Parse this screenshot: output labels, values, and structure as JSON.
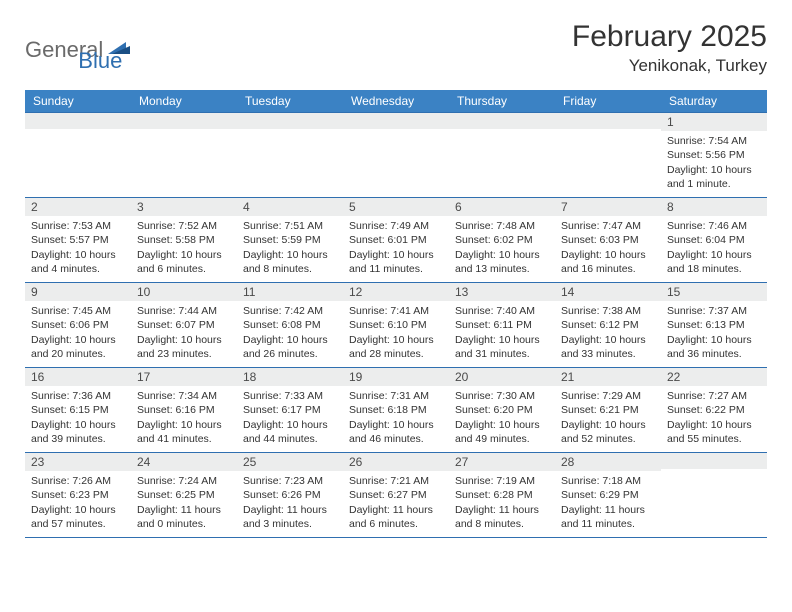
{
  "brand": {
    "part1": "General",
    "part2": "Blue"
  },
  "title": "February 2025",
  "location": "Yenikonak, Turkey",
  "colors": {
    "header_bg": "#3b82c4",
    "header_text": "#ffffff",
    "rule": "#2f6fb0",
    "daynum_bg": "#eceded",
    "body_text": "#333333",
    "logo_gray": "#6a6a6a",
    "logo_blue": "#2f6fb0"
  },
  "day_names": [
    "Sunday",
    "Monday",
    "Tuesday",
    "Wednesday",
    "Thursday",
    "Friday",
    "Saturday"
  ],
  "weeks": [
    [
      null,
      null,
      null,
      null,
      null,
      null,
      {
        "n": "1",
        "sunrise": "Sunrise: 7:54 AM",
        "sunset": "Sunset: 5:56 PM",
        "daylight": "Daylight: 10 hours and 1 minute."
      }
    ],
    [
      {
        "n": "2",
        "sunrise": "Sunrise: 7:53 AM",
        "sunset": "Sunset: 5:57 PM",
        "daylight": "Daylight: 10 hours and 4 minutes."
      },
      {
        "n": "3",
        "sunrise": "Sunrise: 7:52 AM",
        "sunset": "Sunset: 5:58 PM",
        "daylight": "Daylight: 10 hours and 6 minutes."
      },
      {
        "n": "4",
        "sunrise": "Sunrise: 7:51 AM",
        "sunset": "Sunset: 5:59 PM",
        "daylight": "Daylight: 10 hours and 8 minutes."
      },
      {
        "n": "5",
        "sunrise": "Sunrise: 7:49 AM",
        "sunset": "Sunset: 6:01 PM",
        "daylight": "Daylight: 10 hours and 11 minutes."
      },
      {
        "n": "6",
        "sunrise": "Sunrise: 7:48 AM",
        "sunset": "Sunset: 6:02 PM",
        "daylight": "Daylight: 10 hours and 13 minutes."
      },
      {
        "n": "7",
        "sunrise": "Sunrise: 7:47 AM",
        "sunset": "Sunset: 6:03 PM",
        "daylight": "Daylight: 10 hours and 16 minutes."
      },
      {
        "n": "8",
        "sunrise": "Sunrise: 7:46 AM",
        "sunset": "Sunset: 6:04 PM",
        "daylight": "Daylight: 10 hours and 18 minutes."
      }
    ],
    [
      {
        "n": "9",
        "sunrise": "Sunrise: 7:45 AM",
        "sunset": "Sunset: 6:06 PM",
        "daylight": "Daylight: 10 hours and 20 minutes."
      },
      {
        "n": "10",
        "sunrise": "Sunrise: 7:44 AM",
        "sunset": "Sunset: 6:07 PM",
        "daylight": "Daylight: 10 hours and 23 minutes."
      },
      {
        "n": "11",
        "sunrise": "Sunrise: 7:42 AM",
        "sunset": "Sunset: 6:08 PM",
        "daylight": "Daylight: 10 hours and 26 minutes."
      },
      {
        "n": "12",
        "sunrise": "Sunrise: 7:41 AM",
        "sunset": "Sunset: 6:10 PM",
        "daylight": "Daylight: 10 hours and 28 minutes."
      },
      {
        "n": "13",
        "sunrise": "Sunrise: 7:40 AM",
        "sunset": "Sunset: 6:11 PM",
        "daylight": "Daylight: 10 hours and 31 minutes."
      },
      {
        "n": "14",
        "sunrise": "Sunrise: 7:38 AM",
        "sunset": "Sunset: 6:12 PM",
        "daylight": "Daylight: 10 hours and 33 minutes."
      },
      {
        "n": "15",
        "sunrise": "Sunrise: 7:37 AM",
        "sunset": "Sunset: 6:13 PM",
        "daylight": "Daylight: 10 hours and 36 minutes."
      }
    ],
    [
      {
        "n": "16",
        "sunrise": "Sunrise: 7:36 AM",
        "sunset": "Sunset: 6:15 PM",
        "daylight": "Daylight: 10 hours and 39 minutes."
      },
      {
        "n": "17",
        "sunrise": "Sunrise: 7:34 AM",
        "sunset": "Sunset: 6:16 PM",
        "daylight": "Daylight: 10 hours and 41 minutes."
      },
      {
        "n": "18",
        "sunrise": "Sunrise: 7:33 AM",
        "sunset": "Sunset: 6:17 PM",
        "daylight": "Daylight: 10 hours and 44 minutes."
      },
      {
        "n": "19",
        "sunrise": "Sunrise: 7:31 AM",
        "sunset": "Sunset: 6:18 PM",
        "daylight": "Daylight: 10 hours and 46 minutes."
      },
      {
        "n": "20",
        "sunrise": "Sunrise: 7:30 AM",
        "sunset": "Sunset: 6:20 PM",
        "daylight": "Daylight: 10 hours and 49 minutes."
      },
      {
        "n": "21",
        "sunrise": "Sunrise: 7:29 AM",
        "sunset": "Sunset: 6:21 PM",
        "daylight": "Daylight: 10 hours and 52 minutes."
      },
      {
        "n": "22",
        "sunrise": "Sunrise: 7:27 AM",
        "sunset": "Sunset: 6:22 PM",
        "daylight": "Daylight: 10 hours and 55 minutes."
      }
    ],
    [
      {
        "n": "23",
        "sunrise": "Sunrise: 7:26 AM",
        "sunset": "Sunset: 6:23 PM",
        "daylight": "Daylight: 10 hours and 57 minutes."
      },
      {
        "n": "24",
        "sunrise": "Sunrise: 7:24 AM",
        "sunset": "Sunset: 6:25 PM",
        "daylight": "Daylight: 11 hours and 0 minutes."
      },
      {
        "n": "25",
        "sunrise": "Sunrise: 7:23 AM",
        "sunset": "Sunset: 6:26 PM",
        "daylight": "Daylight: 11 hours and 3 minutes."
      },
      {
        "n": "26",
        "sunrise": "Sunrise: 7:21 AM",
        "sunset": "Sunset: 6:27 PM",
        "daylight": "Daylight: 11 hours and 6 minutes."
      },
      {
        "n": "27",
        "sunrise": "Sunrise: 7:19 AM",
        "sunset": "Sunset: 6:28 PM",
        "daylight": "Daylight: 11 hours and 8 minutes."
      },
      {
        "n": "28",
        "sunrise": "Sunrise: 7:18 AM",
        "sunset": "Sunset: 6:29 PM",
        "daylight": "Daylight: 11 hours and 11 minutes."
      },
      null
    ]
  ]
}
